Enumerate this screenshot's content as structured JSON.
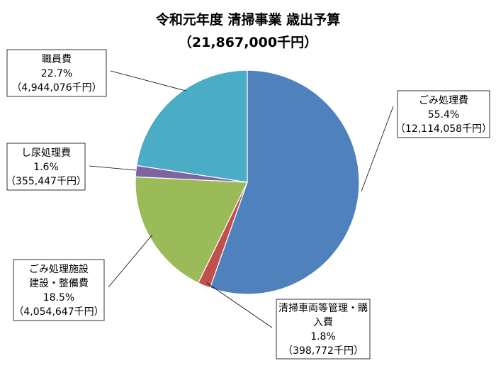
{
  "chart_data": {
    "type": "pie",
    "title": "令和元年度 清掃事業 歳出予算",
    "subtitle": "（21,867,000千円）",
    "slices": [
      {
        "name": "ごみ処理費",
        "percent_label": "55.4%",
        "amount_label": "（12,114,058千円）",
        "value": 12114058,
        "color": "#4f81bd"
      },
      {
        "name": "清掃車両等管理・購入費",
        "name_lines": [
          "清掃車両等管理・購",
          "入費"
        ],
        "percent_label": "1.8%",
        "amount_label": "（398,772千円）",
        "value": 398772,
        "color": "#c0504d"
      },
      {
        "name": "ごみ処理施設建設・整備費",
        "name_lines": [
          "ごみ処理施設",
          "建設・整備費"
        ],
        "percent_label": "18.5%",
        "amount_label": "（4,054,647千円）",
        "value": 4054647,
        "color": "#9bbb59"
      },
      {
        "name": "し尿処理費",
        "percent_label": "1.6%",
        "amount_label": "（355,447千円）",
        "value": 355447,
        "color": "#8064a2"
      },
      {
        "name": "職員費",
        "percent_label": "22.7%",
        "amount_label": "（4,944,076千円）",
        "value": 4944076,
        "color": "#4bacc6"
      }
    ]
  }
}
